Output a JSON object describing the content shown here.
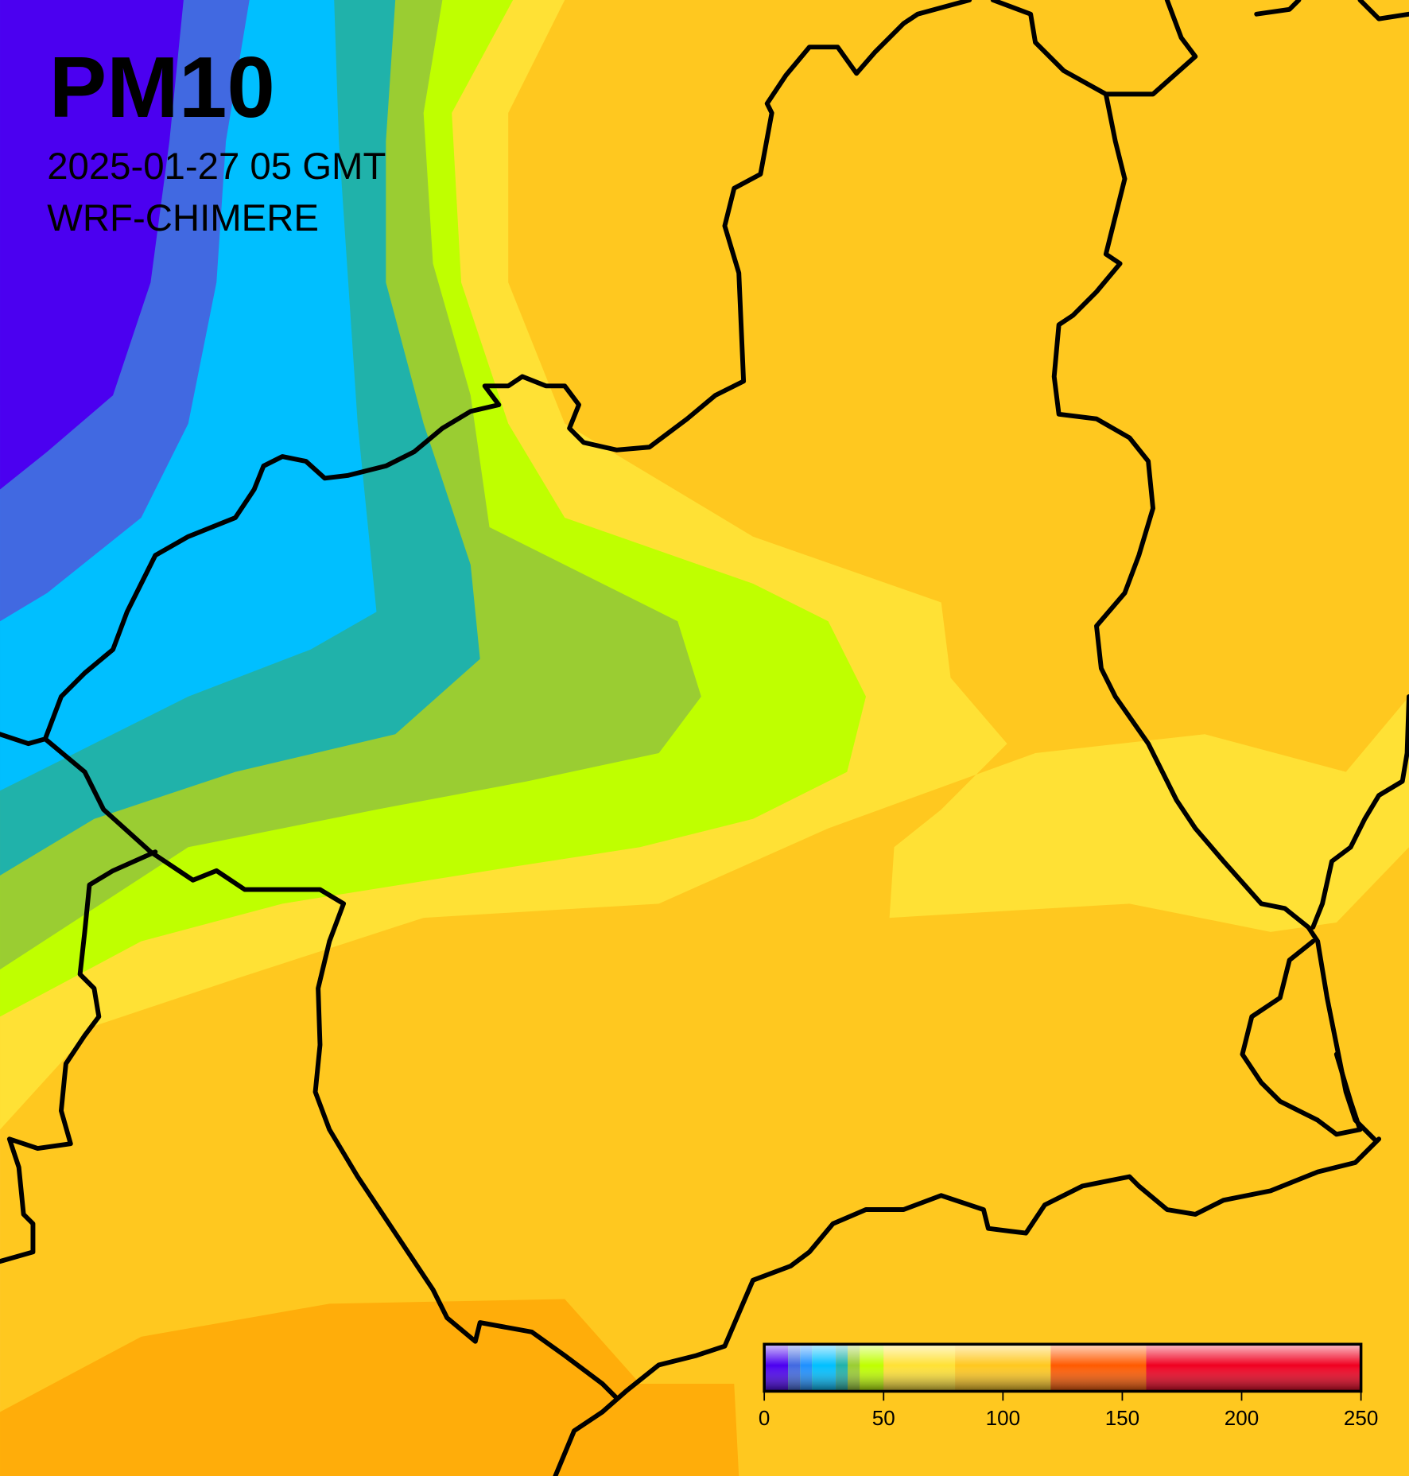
{
  "header": {
    "title": "PM10",
    "date": "2025-01-27 05 GMT",
    "model": "WRF-CHIMERE"
  },
  "chart_data": {
    "type": "colorbar",
    "xlim": [
      0,
      250
    ],
    "xticks": [
      0,
      50,
      100,
      150,
      200,
      250
    ],
    "segments": [
      {
        "from": 0,
        "to": 10,
        "color": "#4b00f0"
      },
      {
        "from": 10,
        "to": 15,
        "color": "#4169e1"
      },
      {
        "from": 15,
        "to": 20,
        "color": "#1e90ff"
      },
      {
        "from": 20,
        "to": 30,
        "color": "#00bfff"
      },
      {
        "from": 30,
        "to": 35,
        "color": "#20b2aa"
      },
      {
        "from": 35,
        "to": 40,
        "color": "#9acd32"
      },
      {
        "from": 40,
        "to": 50,
        "color": "#bfff00"
      },
      {
        "from": 50,
        "to": 80,
        "color": "#ffe135"
      },
      {
        "from": 80,
        "to": 120,
        "color": "#ffc81f"
      },
      {
        "from": 120,
        "to": 160,
        "color": "#ff5a00"
      },
      {
        "from": 160,
        "to": 250,
        "color": "#f00020"
      }
    ]
  }
}
